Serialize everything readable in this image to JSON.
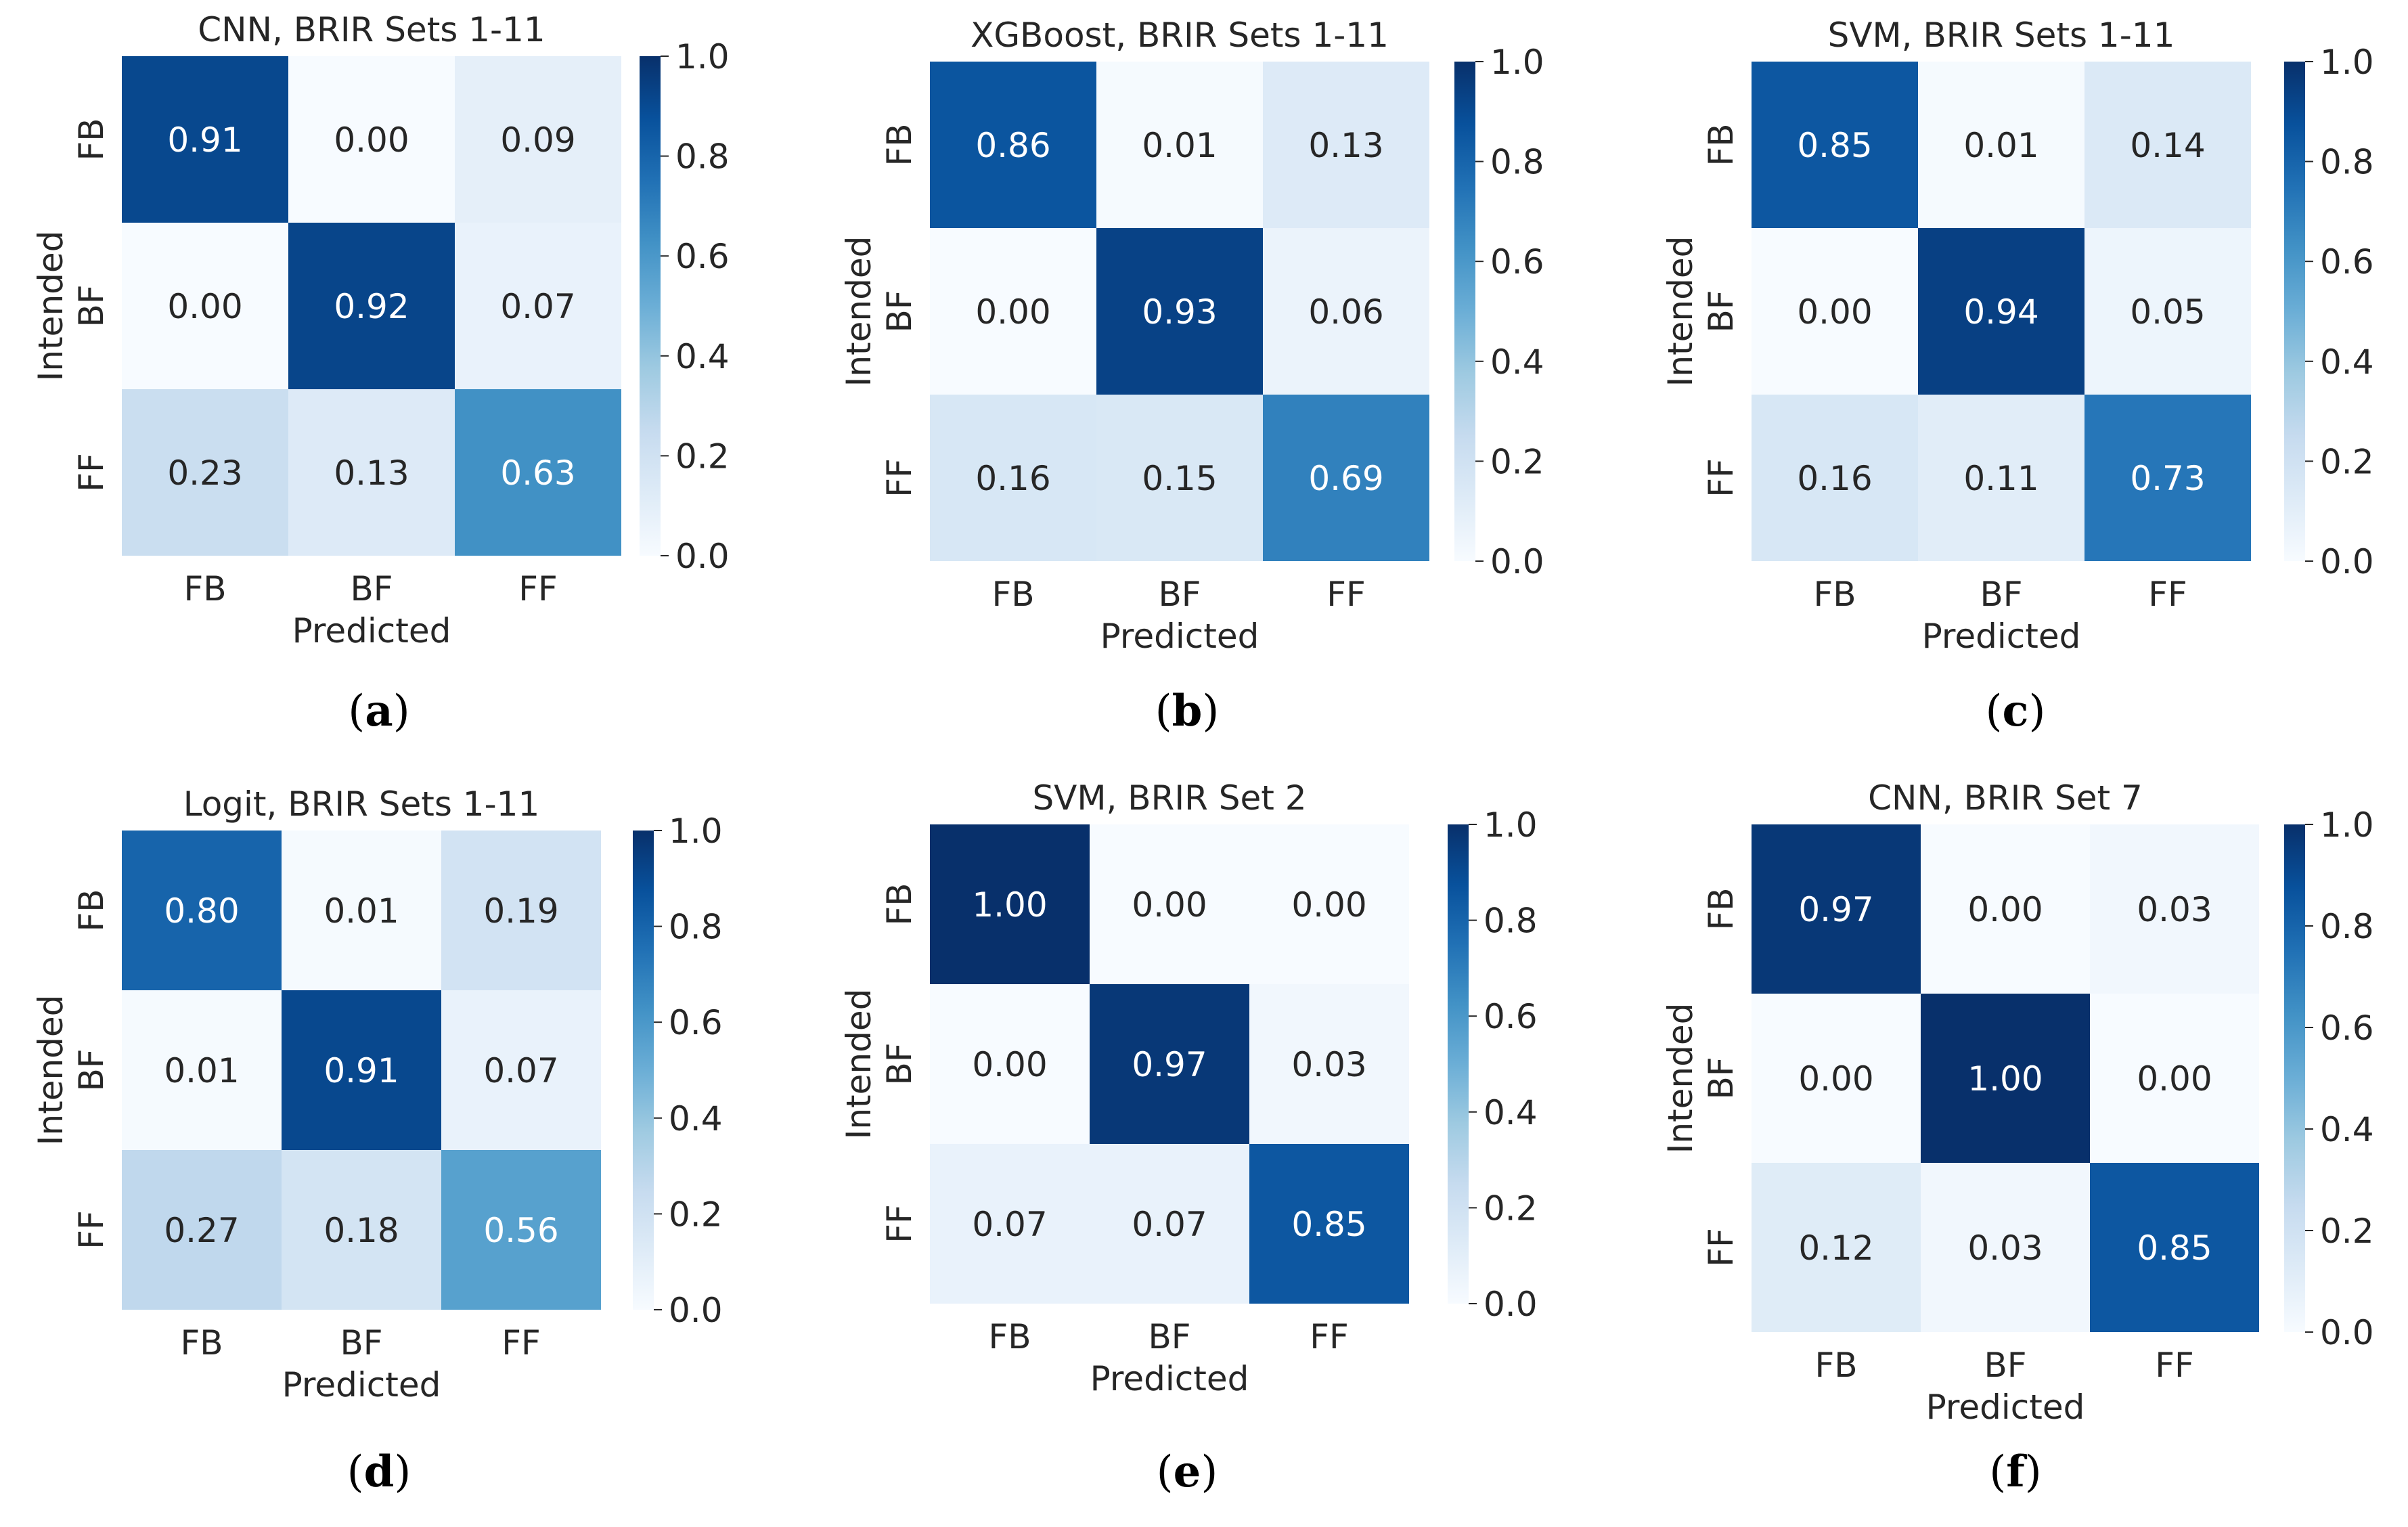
{
  "chart_data": [
    {
      "type": "heatmap",
      "panel_label": "(a)",
      "title": "CNN, BRIR Sets 1-11",
      "xlabel": "Predicted",
      "ylabel": "Intended",
      "x_categories": [
        "FB",
        "BF",
        "FF"
      ],
      "y_categories": [
        "FB",
        "BF",
        "FF"
      ],
      "matrix": [
        [
          0.91,
          0.0,
          0.09
        ],
        [
          0.0,
          0.92,
          0.07
        ],
        [
          0.23,
          0.13,
          0.63
        ]
      ],
      "colorbar": {
        "min": 0.0,
        "max": 1.0,
        "ticks": [
          "0.0",
          "0.2",
          "0.4",
          "0.6",
          "0.8",
          "1.0"
        ],
        "colormap": "Blues"
      }
    },
    {
      "type": "heatmap",
      "panel_label": "(b)",
      "title": "XGBoost, BRIR Sets 1-11",
      "xlabel": "Predicted",
      "ylabel": "Intended",
      "x_categories": [
        "FB",
        "BF",
        "FF"
      ],
      "y_categories": [
        "FB",
        "BF",
        "FF"
      ],
      "matrix": [
        [
          0.86,
          0.01,
          0.13
        ],
        [
          0.0,
          0.93,
          0.06
        ],
        [
          0.16,
          0.15,
          0.69
        ]
      ],
      "colorbar": {
        "min": 0.0,
        "max": 1.0,
        "ticks": [
          "0.0",
          "0.2",
          "0.4",
          "0.6",
          "0.8",
          "1.0"
        ],
        "colormap": "Blues"
      }
    },
    {
      "type": "heatmap",
      "panel_label": "(c)",
      "title": "SVM, BRIR Sets 1-11",
      "xlabel": "Predicted",
      "ylabel": "Intended",
      "x_categories": [
        "FB",
        "BF",
        "FF"
      ],
      "y_categories": [
        "FB",
        "BF",
        "FF"
      ],
      "matrix": [
        [
          0.85,
          0.01,
          0.14
        ],
        [
          0.0,
          0.94,
          0.05
        ],
        [
          0.16,
          0.11,
          0.73
        ]
      ],
      "colorbar": {
        "min": 0.0,
        "max": 1.0,
        "ticks": [
          "0.0",
          "0.2",
          "0.4",
          "0.6",
          "0.8",
          "1.0"
        ],
        "colormap": "Blues"
      }
    },
    {
      "type": "heatmap",
      "panel_label": "(d)",
      "title": "Logit, BRIR Sets 1-11",
      "xlabel": "Predicted",
      "ylabel": "Intended",
      "x_categories": [
        "FB",
        "BF",
        "FF"
      ],
      "y_categories": [
        "FB",
        "BF",
        "FF"
      ],
      "matrix": [
        [
          0.8,
          0.01,
          0.19
        ],
        [
          0.01,
          0.91,
          0.07
        ],
        [
          0.27,
          0.18,
          0.56
        ]
      ],
      "colorbar": {
        "min": 0.0,
        "max": 1.0,
        "ticks": [
          "0.0",
          "0.2",
          "0.4",
          "0.6",
          "0.8",
          "1.0"
        ],
        "colormap": "Blues"
      }
    },
    {
      "type": "heatmap",
      "panel_label": "(e)",
      "title": "SVM, BRIR Set 2",
      "xlabel": "Predicted",
      "ylabel": "Intended",
      "x_categories": [
        "FB",
        "BF",
        "FF"
      ],
      "y_categories": [
        "FB",
        "BF",
        "FF"
      ],
      "matrix": [
        [
          1.0,
          0.0,
          0.0
        ],
        [
          0.0,
          0.97,
          0.03
        ],
        [
          0.07,
          0.07,
          0.85
        ]
      ],
      "colorbar": {
        "min": 0.0,
        "max": 1.0,
        "ticks": [
          "0.0",
          "0.2",
          "0.4",
          "0.6",
          "0.8",
          "1.0"
        ],
        "colormap": "Blues"
      }
    },
    {
      "type": "heatmap",
      "panel_label": "(f)",
      "title": "CNN, BRIR Set 7",
      "xlabel": "Predicted",
      "ylabel": "Intended",
      "x_categories": [
        "FB",
        "BF",
        "FF"
      ],
      "y_categories": [
        "FB",
        "BF",
        "FF"
      ],
      "matrix": [
        [
          0.97,
          0.0,
          0.03
        ],
        [
          0.0,
          1.0,
          0.0
        ],
        [
          0.12,
          0.03,
          0.85
        ]
      ],
      "colorbar": {
        "min": 0.0,
        "max": 1.0,
        "ticks": [
          "0.0",
          "0.2",
          "0.4",
          "0.6",
          "0.8",
          "1.0"
        ],
        "colormap": "Blues"
      }
    }
  ]
}
